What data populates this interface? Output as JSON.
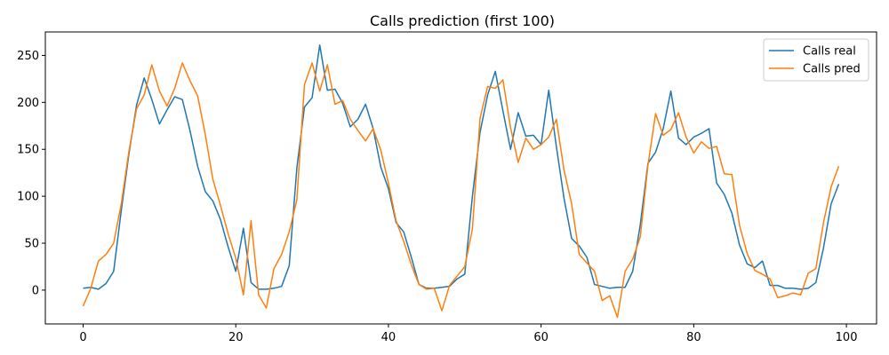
{
  "chart_data": {
    "type": "line",
    "title": "Calls prediction (first 100)",
    "xlabel": "",
    "ylabel": "",
    "xlim": [
      -4.95,
      103.95
    ],
    "ylim": [
      -36,
      275
    ],
    "xticks": [
      0,
      20,
      40,
      60,
      80,
      100
    ],
    "yticks": [
      0,
      50,
      100,
      150,
      200,
      250
    ],
    "grid": false,
    "legend_position": "top-right",
    "colors": {
      "real": "#1f77b4",
      "pred": "#ff7f0e"
    },
    "series": [
      {
        "name": "Calls real",
        "x": [
          0,
          1,
          2,
          3,
          4,
          5,
          6,
          7,
          8,
          9,
          10,
          11,
          12,
          13,
          14,
          15,
          16,
          17,
          18,
          19,
          20,
          21,
          22,
          23,
          24,
          25,
          26,
          27,
          28,
          29,
          30,
          31,
          32,
          33,
          34,
          35,
          36,
          37,
          38,
          39,
          40,
          41,
          42,
          43,
          44,
          45,
          46,
          47,
          48,
          49,
          50,
          51,
          52,
          53,
          54,
          55,
          56,
          57,
          58,
          59,
          60,
          61,
          62,
          63,
          64,
          65,
          66,
          67,
          68,
          69,
          70,
          71,
          72,
          73,
          74,
          75,
          76,
          77,
          78,
          79,
          80,
          81,
          82,
          83,
          84,
          85,
          86,
          87,
          88,
          89,
          90,
          91,
          92,
          93,
          94,
          95,
          96,
          97,
          98,
          99
        ],
        "values": [
          2,
          3,
          1,
          7,
          20,
          85,
          145,
          197,
          226,
          203,
          177,
          192,
          206,
          203,
          170,
          132,
          105,
          95,
          75,
          46,
          20,
          66,
          8,
          1,
          1,
          2,
          4,
          26,
          130,
          195,
          205,
          261,
          213,
          214,
          199,
          174,
          182,
          198,
          172,
          131,
          108,
          72,
          62,
          35,
          6,
          2,
          2,
          3,
          4,
          12,
          17,
          100,
          168,
          208,
          233,
          191,
          150,
          189,
          164,
          165,
          155,
          213,
          153,
          98,
          55,
          47,
          35,
          6,
          4,
          2,
          3,
          3,
          20,
          70,
          135,
          147,
          172,
          212,
          162,
          155,
          163,
          167,
          172,
          114,
          102,
          82,
          48,
          28,
          24,
          31,
          5,
          5,
          2,
          2,
          1,
          2,
          8,
          45,
          92,
          113
        ]
      },
      {
        "name": "Calls pred",
        "x": [
          0,
          1,
          2,
          3,
          4,
          5,
          6,
          7,
          8,
          9,
          10,
          11,
          12,
          13,
          14,
          15,
          16,
          17,
          18,
          19,
          20,
          21,
          22,
          23,
          24,
          25,
          26,
          27,
          28,
          29,
          30,
          31,
          32,
          33,
          34,
          35,
          36,
          37,
          38,
          39,
          40,
          41,
          42,
          43,
          44,
          45,
          46,
          47,
          48,
          49,
          50,
          51,
          52,
          53,
          54,
          55,
          56,
          57,
          58,
          59,
          60,
          61,
          62,
          63,
          64,
          65,
          66,
          67,
          68,
          69,
          70,
          71,
          72,
          73,
          74,
          75,
          76,
          77,
          78,
          79,
          80,
          81,
          82,
          83,
          84,
          85,
          86,
          87,
          88,
          89,
          90,
          91,
          92,
          93,
          94,
          95,
          96,
          97,
          98,
          99
        ],
        "values": [
          -17,
          2,
          31,
          38,
          50,
          92,
          148,
          193,
          208,
          240,
          212,
          196,
          215,
          242,
          223,
          207,
          166,
          118,
          90,
          60,
          34,
          -5,
          74,
          -5,
          -19,
          23,
          38,
          62,
          96,
          219,
          242,
          212,
          240,
          198,
          202,
          182,
          170,
          159,
          172,
          149,
          114,
          74,
          52,
          27,
          6,
          1,
          2,
          -22,
          5,
          15,
          25,
          65,
          183,
          217,
          215,
          224,
          173,
          136,
          162,
          150,
          155,
          163,
          182,
          128,
          92,
          38,
          29,
          20,
          -11,
          -6,
          -29,
          20,
          33,
          57,
          133,
          188,
          165,
          171,
          189,
          163,
          146,
          158,
          151,
          153,
          124,
          123,
          69,
          39,
          21,
          17,
          12,
          -8,
          -6,
          -3,
          -5,
          18,
          23,
          72,
          110,
          132
        ]
      }
    ]
  }
}
